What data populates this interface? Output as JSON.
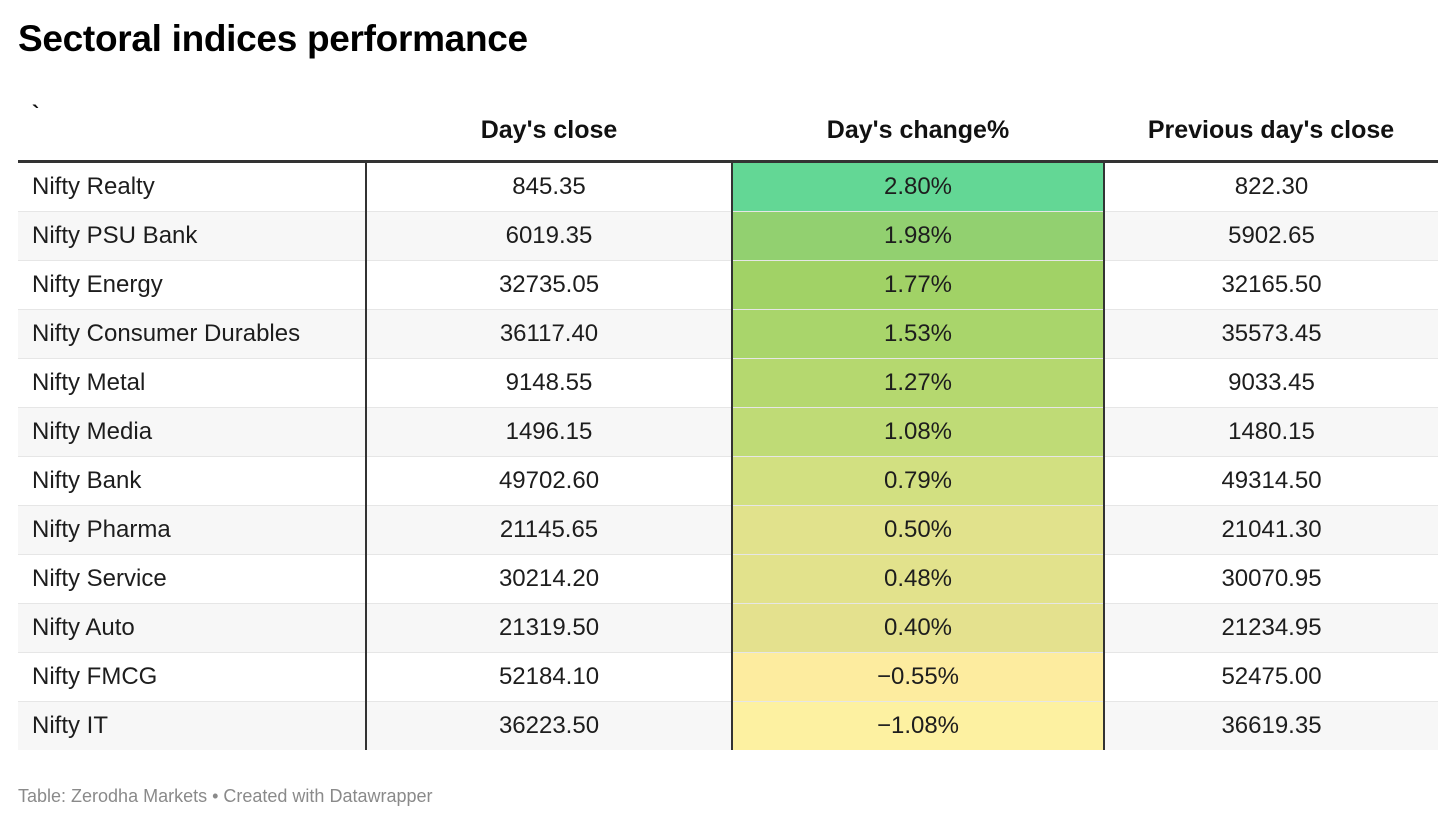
{
  "title": "Sectoral indices performance",
  "footer": "Table: Zerodha Markets • Created with Datawrapper",
  "chart_data": {
    "type": "table",
    "title": "Sectoral indices performance",
    "columns": [
      "`",
      "Day's close",
      "Day's change%",
      "Previous day's close"
    ],
    "rows": [
      {
        "name": "Nifty Realty",
        "close": "845.35",
        "change": "2.80%",
        "change_value": 2.8,
        "prev": "822.30",
        "color": "#63d795"
      },
      {
        "name": "Nifty PSU Bank",
        "close": "6019.35",
        "change": "1.98%",
        "change_value": 1.98,
        "prev": "5902.65",
        "color": "#92d070"
      },
      {
        "name": "Nifty Energy",
        "close": "32735.05",
        "change": "1.77%",
        "change_value": 1.77,
        "prev": "32165.50",
        "color": "#a1d266"
      },
      {
        "name": "Nifty Consumer Durables",
        "close": "36117.40",
        "change": "1.53%",
        "change_value": 1.53,
        "prev": "35573.45",
        "color": "#a9d56b"
      },
      {
        "name": "Nifty Metal",
        "close": "9148.55",
        "change": "1.27%",
        "change_value": 1.27,
        "prev": "9033.45",
        "color": "#b5d86f"
      },
      {
        "name": "Nifty Media",
        "close": "1496.15",
        "change": "1.08%",
        "change_value": 1.08,
        "prev": "1480.15",
        "color": "#bfdb76"
      },
      {
        "name": "Nifty Bank",
        "close": "49702.60",
        "change": "0.79%",
        "change_value": 0.79,
        "prev": "49314.50",
        "color": "#d2e081"
      },
      {
        "name": "Nifty Pharma",
        "close": "21145.65",
        "change": "0.50%",
        "change_value": 0.5,
        "prev": "21041.30",
        "color": "#e1e28c"
      },
      {
        "name": "Nifty Service",
        "close": "30214.20",
        "change": "0.48%",
        "change_value": 0.48,
        "prev": "30070.95",
        "color": "#e2e28c"
      },
      {
        "name": "Nifty Auto",
        "close": "21319.50",
        "change": "0.40%",
        "change_value": 0.4,
        "prev": "21234.95",
        "color": "#e4e18e"
      },
      {
        "name": "Nifty FMCG",
        "close": "52184.10",
        "change": "−0.55%",
        "change_value": -0.55,
        "prev": "52475.00",
        "color": "#fdec9f"
      },
      {
        "name": "Nifty IT",
        "close": "36223.50",
        "change": "−1.08%",
        "change_value": -1.08,
        "prev": "36619.35",
        "color": "#fdf1a1"
      }
    ]
  }
}
